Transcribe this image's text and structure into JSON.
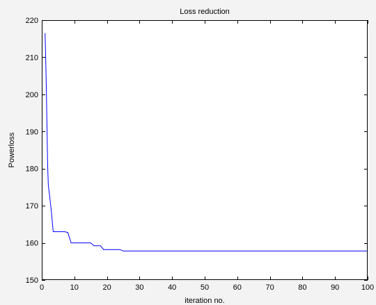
{
  "chart_data": {
    "type": "line",
    "title": "Loss reduction",
    "xlabel": "iteration no.",
    "ylabel": "Powerloss",
    "xlim": [
      0,
      100
    ],
    "ylim": [
      150,
      220
    ],
    "xticks": [
      0,
      10,
      20,
      30,
      40,
      50,
      60,
      70,
      80,
      90,
      100
    ],
    "yticks": [
      150,
      160,
      170,
      180,
      190,
      200,
      210,
      220
    ],
    "grid": false,
    "series": [
      {
        "color": "#0000ff",
        "x": [
          1,
          1.2,
          1.4,
          1.6,
          1.8,
          2,
          2.5,
          3,
          3.5,
          4,
          5,
          6,
          7,
          8,
          9,
          10,
          11,
          12,
          13,
          14,
          15,
          16,
          17,
          18,
          19,
          20,
          21,
          22,
          23,
          24,
          25,
          26,
          30,
          40,
          50,
          60,
          70,
          80,
          90,
          100
        ],
        "y": [
          216.5,
          210,
          201,
          191,
          181,
          175.5,
          172,
          168,
          163,
          163,
          163,
          163,
          163,
          162.8,
          160,
          160,
          160,
          160,
          160,
          160,
          160,
          159.2,
          159.2,
          159.2,
          158.2,
          158.2,
          158.2,
          158.2,
          158.2,
          158.2,
          157.8,
          157.8,
          157.8,
          157.8,
          157.8,
          157.8,
          157.8,
          157.8,
          157.8,
          157.8
        ]
      }
    ]
  }
}
